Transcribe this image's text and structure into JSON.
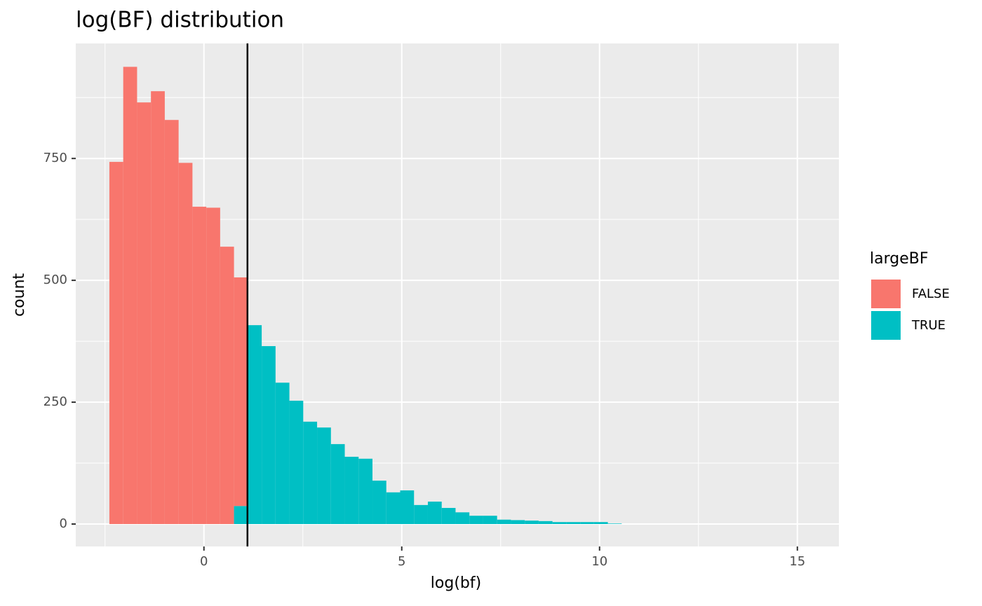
{
  "chart_data": {
    "type": "histogram",
    "title": "log(BF) distribution",
    "x_label": "log(bf)",
    "y_label": "count",
    "legend_title": "largeBF",
    "legend_position": "right",
    "bins": [
      -2.39,
      -2.04,
      -1.69,
      -1.34,
      -0.99,
      -0.64,
      -0.29,
      0.06,
      0.41,
      0.76,
      1.11,
      1.46,
      1.81,
      2.16,
      2.51,
      2.86,
      3.21,
      3.56,
      3.91,
      4.26,
      4.61,
      4.96,
      5.31,
      5.66,
      6.01,
      6.36,
      6.71,
      7.06,
      7.41,
      7.76,
      8.11,
      8.46,
      8.81,
      9.16,
      9.51,
      9.86,
      10.21,
      10.56
    ],
    "series": [
      {
        "name": "FALSE",
        "color": "#f8766d",
        "values": [
          743,
          938,
          865,
          888,
          829,
          741,
          651,
          649,
          569,
          469,
          0,
          0,
          0,
          0,
          0,
          0,
          0,
          0,
          0,
          0,
          0,
          0,
          0,
          0,
          0,
          0,
          0,
          0,
          0,
          0,
          0,
          0,
          0,
          0,
          0,
          0,
          0
        ]
      },
      {
        "name": "TRUE",
        "color": "#00bfc4",
        "values": [
          0,
          0,
          0,
          0,
          0,
          0,
          0,
          0,
          0,
          37,
          408,
          365,
          290,
          253,
          210,
          198,
          164,
          138,
          134,
          89,
          65,
          69,
          39,
          46,
          33,
          24,
          17,
          17,
          9,
          8,
          7,
          6,
          4,
          4,
          4,
          4,
          1
        ]
      }
    ],
    "vline": 1.1,
    "xlim": [
      -3.24,
      16.05
    ],
    "ylim": [
      -46,
      986
    ],
    "xticks": [
      0,
      5,
      10,
      15
    ],
    "yticks": [
      0,
      250,
      500,
      750
    ],
    "xminor": [
      -2.5,
      2.5,
      7.5,
      12.5
    ],
    "yminor": [
      125,
      375,
      625,
      875
    ],
    "grid": true
  }
}
